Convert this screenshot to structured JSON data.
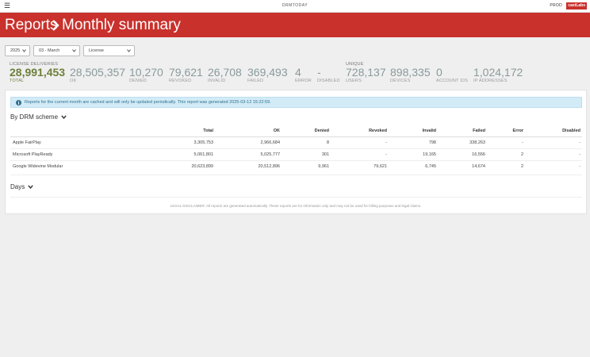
{
  "topbar": {
    "menu_icon": "hamburger-icon",
    "app_name": "DRMTODAY",
    "env": "PROD",
    "brand": "castLabs"
  },
  "header": {
    "crumb_root": "Reports",
    "crumb_sep_icon": "chevron-right-icon",
    "crumb_current": "Monthly summary"
  },
  "filters": {
    "year": "2025",
    "month": "03 - March",
    "type": "License"
  },
  "stats": {
    "license_group_label": "LICENSE DELIVERIES",
    "unique_group_label": "UNIQUE",
    "items": [
      {
        "value": "28,991,453",
        "label": "TOTAL"
      },
      {
        "value": "28,505,357",
        "label": "OK"
      },
      {
        "value": "10,270",
        "label": "DENIED"
      },
      {
        "value": "79,621",
        "label": "REVOKED"
      },
      {
        "value": "26,708",
        "label": "INVALID"
      },
      {
        "value": "369,493",
        "label": "FAILED"
      },
      {
        "value": "4",
        "label": "ERROR"
      },
      {
        "value": "-",
        "label": "DISABLED"
      },
      {
        "value": "728,137",
        "label": "USERS"
      },
      {
        "value": "898,335",
        "label": "DEVICES"
      },
      {
        "value": "0",
        "label": "ACCOUNT IDS"
      },
      {
        "value": "1,024,172",
        "label": "IP ADDRESSES"
      }
    ]
  },
  "notice": {
    "icon": "info-icon",
    "text": "Reports for the current month are cached and will only be updated periodically. This report was generated 2025-03-12 15:22:59."
  },
  "drm_section": {
    "title": "By DRM scheme",
    "columns": [
      "",
      "Total",
      "OK",
      "Denied",
      "Revoked",
      "Invalid",
      "Failed",
      "Error",
      "Disabled"
    ],
    "rows": [
      [
        "Apple FairPlay",
        "3,305,753",
        "2,966,684",
        "8",
        "-",
        "798",
        "338,263",
        "-",
        "-"
      ],
      [
        "Microsoft PlayReady",
        "5,061,801",
        "5,025,777",
        "301",
        "-",
        "19,165",
        "16,556",
        "2",
        "-"
      ],
      [
        "Google Widevine Modular",
        "20,623,899",
        "20,512,896",
        "9,961",
        "79,621",
        "6,745",
        "14,674",
        "2",
        "-"
      ]
    ]
  },
  "days_section": {
    "title": "Days"
  },
  "disclaimer": "LEGAL DISCLAIMER: All reports are generated automatically. These reports are for information only and may not be used for billing purposes and legal claims.",
  "colors": {
    "header_red": "#c9312c",
    "total_green": "#6c7f3a",
    "notice_bg": "#d2ebf7"
  }
}
